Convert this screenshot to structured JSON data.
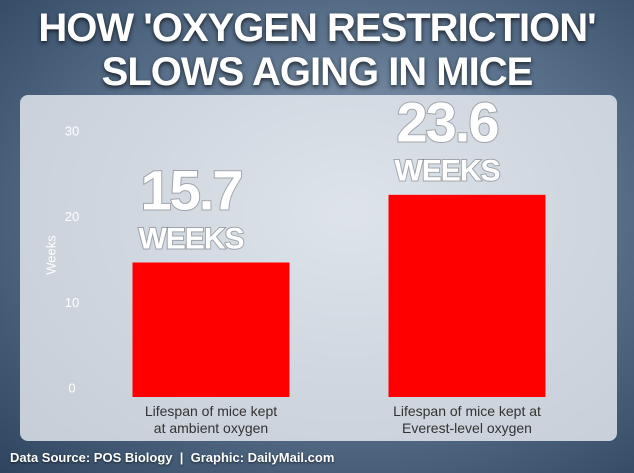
{
  "chart_data": {
    "type": "bar",
    "title": "HOW 'OXYGEN RESTRICTION'\nSLOWS AGING IN MICE",
    "y_label": "Weeks",
    "categories": [
      "Lifespan of mice kept\nat ambient oxygen",
      "Lifespan of mice kept at\nEverest-level oxygen"
    ],
    "values": [
      15.7,
      23.6
    ],
    "value_unit": "WEEKS",
    "color": "#ff0000",
    "ylim": [
      0,
      30
    ],
    "yticks": [
      0,
      10,
      20,
      30
    ],
    "grid": false,
    "source": "Data Source: POS Biology  |  Graphic: DailyMail.com"
  }
}
